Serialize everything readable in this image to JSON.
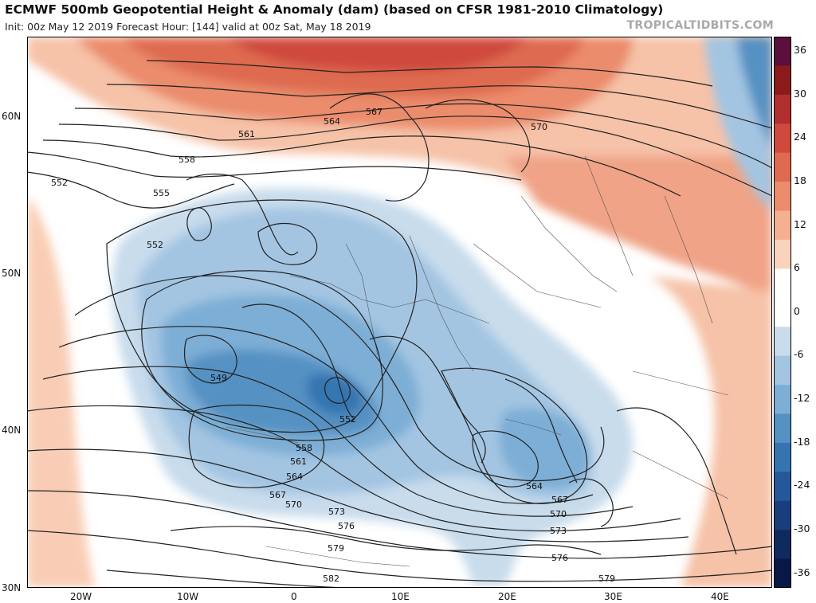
{
  "header": {
    "title": "ECMWF 500mb Geopotential Height & Anomaly (dam) (based on CFSR 1981-2010 Climatology)",
    "subtitle": "Init: 00z May 12 2019   Forecast Hour: [144]   valid at 00z Sat, May 18 2019",
    "site": "TROPICALTIDBITS.COM"
  },
  "axes": {
    "lat_labels": [
      "60N",
      "50N",
      "40N",
      "30N"
    ],
    "lon_labels": [
      "20W",
      "10W",
      "0",
      "10E",
      "20E",
      "30E",
      "40E"
    ]
  },
  "colorbar": {
    "labels": [
      "36",
      "30",
      "24",
      "18",
      "12",
      "6",
      "0",
      "-6",
      "-12",
      "-18",
      "-24",
      "-30",
      "-36"
    ],
    "colors": [
      "#5a0f3c",
      "#8b1a1a",
      "#b22f2f",
      "#cf4a3c",
      "#de6a50",
      "#eb8c6c",
      "#f4b090",
      "#fad3bd",
      "#ffffff",
      "#ffffff",
      "#c8dcec",
      "#a3c5e2",
      "#7daed5",
      "#5591c3",
      "#3674b0",
      "#25589a",
      "#193e7e",
      "#0f2a5e",
      "#081746"
    ]
  },
  "contours": {
    "labels": [
      "552",
      "555",
      "558",
      "561",
      "564",
      "567",
      "570",
      "552",
      "549",
      "552",
      "558",
      "561",
      "564",
      "567",
      "570",
      "573",
      "576",
      "579",
      "582",
      "564",
      "567",
      "570",
      "573",
      "576",
      "579"
    ]
  }
}
